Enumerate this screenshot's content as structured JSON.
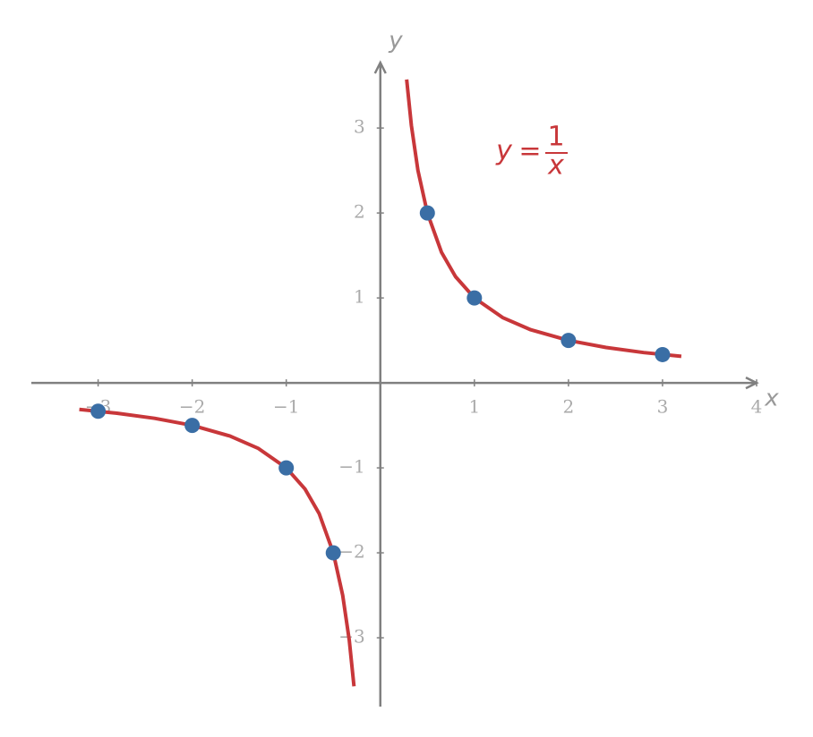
{
  "chart_data": {
    "type": "line",
    "xlabel": "x",
    "ylabel": "y",
    "annotation": {
      "lhs": "y",
      "equals": "=",
      "numerator": "1",
      "denominator": "x"
    },
    "xlim": [
      -3.71,
      4
    ],
    "ylim": [
      -3.81,
      3.77
    ],
    "xticks": [
      {
        "value": -3,
        "label": "−3"
      },
      {
        "value": -2,
        "label": "−2"
      },
      {
        "value": -1,
        "label": "−1"
      },
      1,
      2,
      3,
      4
    ],
    "yticks": [
      {
        "value": -3,
        "label": "−3"
      },
      {
        "value": -2,
        "label": "−2"
      },
      {
        "value": -1,
        "label": "−1"
      },
      1,
      2,
      3
    ],
    "curve": {
      "color": "#c8373a",
      "x": [
        -3.2,
        -2.8,
        -2.4,
        -2,
        -1.6,
        -1.3,
        -1,
        -0.8,
        -0.65,
        -0.5,
        -0.4,
        -0.33,
        -0.28,
        null,
        0.28,
        0.33,
        0.4,
        0.5,
        0.65,
        0.8,
        1,
        1.3,
        1.6,
        2,
        2.4,
        2.8,
        3.2
      ],
      "y": [
        -0.3125,
        -0.3571,
        -0.4167,
        -0.5,
        -0.625,
        -0.7692,
        -1,
        -1.25,
        -1.5385,
        -2,
        -2.5,
        -3.0303,
        -3.5714,
        null,
        3.5714,
        3.0303,
        2.5,
        2,
        1.5385,
        1.25,
        1,
        0.7692,
        0.625,
        0.5,
        0.4167,
        0.3571,
        0.3125
      ]
    },
    "points": {
      "color": "#3a6ea5",
      "x": [
        -3,
        -2,
        -1,
        -0.5,
        0.5,
        1,
        2,
        3
      ],
      "y": [
        -0.3333,
        -0.5,
        -1,
        -2,
        2,
        1,
        0.5,
        0.3333
      ]
    },
    "axis_color": "#808080"
  }
}
